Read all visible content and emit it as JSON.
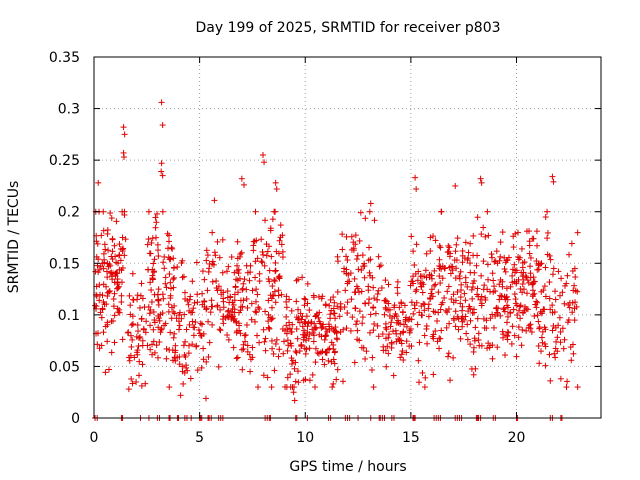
{
  "chart_data": {
    "type": "scatter",
    "title": "Day 199 of 2025, SRMTID for receiver p803",
    "xlabel": "GPS time / hours",
    "ylabel": "SRMTID / TECUs",
    "xlim": [
      0,
      24
    ],
    "ylim": [
      0,
      0.35
    ],
    "grid": true,
    "marker": "+",
    "color": "#e00000",
    "xticks": [
      0,
      5,
      10,
      15,
      20
    ],
    "xtick_labels": [
      "0",
      "5",
      "10",
      "15",
      "20"
    ],
    "yticks": [
      0,
      0.05,
      0.1,
      0.15,
      0.2,
      0.25,
      0.3,
      0.35
    ],
    "ytick_labels": [
      "0",
      "0.05",
      "0.1",
      "0.15",
      "0.2",
      "0.25",
      "0.3",
      "0.35"
    ],
    "clusters": [
      {
        "x0": 0.0,
        "x1": 1.5,
        "mean": 0.14,
        "spread": 0.035,
        "n": 130
      },
      {
        "x0": 1.5,
        "x1": 2.5,
        "mean": 0.08,
        "spread": 0.03,
        "n": 50
      },
      {
        "x0": 2.5,
        "x1": 3.8,
        "mean": 0.12,
        "spread": 0.04,
        "n": 110
      },
      {
        "x0": 3.8,
        "x1": 5.3,
        "mean": 0.09,
        "spread": 0.03,
        "n": 80
      },
      {
        "x0": 5.3,
        "x1": 6.3,
        "mean": 0.12,
        "spread": 0.03,
        "n": 50
      },
      {
        "x0": 6.3,
        "x1": 7.5,
        "mean": 0.1,
        "spread": 0.03,
        "n": 90
      },
      {
        "x0": 7.5,
        "x1": 9.0,
        "mean": 0.13,
        "spread": 0.04,
        "n": 100
      },
      {
        "x0": 9.0,
        "x1": 11.5,
        "mean": 0.08,
        "spread": 0.025,
        "n": 170
      },
      {
        "x0": 11.5,
        "x1": 13.8,
        "mean": 0.12,
        "spread": 0.035,
        "n": 120
      },
      {
        "x0": 13.8,
        "x1": 15.0,
        "mean": 0.09,
        "spread": 0.02,
        "n": 70
      },
      {
        "x0": 15.0,
        "x1": 16.5,
        "mean": 0.12,
        "spread": 0.035,
        "n": 100
      },
      {
        "x0": 16.5,
        "x1": 19.0,
        "mean": 0.12,
        "spread": 0.035,
        "n": 160
      },
      {
        "x0": 19.0,
        "x1": 21.0,
        "mean": 0.12,
        "spread": 0.03,
        "n": 150
      },
      {
        "x0": 21.0,
        "x1": 22.9,
        "mean": 0.11,
        "spread": 0.035,
        "n": 100
      }
    ],
    "outliers": [
      {
        "x": 3.2,
        "y": 0.306
      },
      {
        "x": 3.25,
        "y": 0.284
      },
      {
        "x": 1.4,
        "y": 0.282
      },
      {
        "x": 1.45,
        "y": 0.275
      },
      {
        "x": 1.4,
        "y": 0.257
      },
      {
        "x": 1.42,
        "y": 0.253
      },
      {
        "x": 8.0,
        "y": 0.255
      },
      {
        "x": 8.05,
        "y": 0.248
      },
      {
        "x": 3.2,
        "y": 0.247
      },
      {
        "x": 3.18,
        "y": 0.239
      },
      {
        "x": 3.25,
        "y": 0.235
      },
      {
        "x": 7.0,
        "y": 0.232
      },
      {
        "x": 7.1,
        "y": 0.226
      },
      {
        "x": 0.2,
        "y": 0.228
      },
      {
        "x": 15.2,
        "y": 0.233
      },
      {
        "x": 15.25,
        "y": 0.222
      },
      {
        "x": 18.3,
        "y": 0.232
      },
      {
        "x": 18.35,
        "y": 0.228
      },
      {
        "x": 21.7,
        "y": 0.234
      },
      {
        "x": 21.75,
        "y": 0.229
      },
      {
        "x": 8.6,
        "y": 0.228
      },
      {
        "x": 8.65,
        "y": 0.222
      },
      {
        "x": 17.1,
        "y": 0.225
      },
      {
        "x": 5.7,
        "y": 0.211
      },
      {
        "x": 13.1,
        "y": 0.208
      },
      {
        "x": 4.1,
        "y": 0.022
      },
      {
        "x": 5.3,
        "y": 0.019
      },
      {
        "x": 9.5,
        "y": 0.017
      },
      {
        "x": 9.45,
        "y": 0.025
      },
      {
        "x": 1.65,
        "y": 0.028
      },
      {
        "x": 22.1,
        "y": 0.038
      },
      {
        "x": 21.6,
        "y": 0.036
      }
    ],
    "zero_values_x": [
      0.05,
      0.15,
      1.3,
      1.35,
      2.2,
      2.6,
      3.0,
      3.1,
      3.55,
      3.6,
      3.95,
      4.0,
      4.3,
      4.4,
      4.6,
      5.0,
      5.05,
      5.1,
      5.4,
      5.45,
      5.55,
      5.9,
      6.0,
      6.1,
      8.1,
      8.2,
      8.3,
      8.35,
      9.55,
      9.6,
      10.1,
      11.1,
      11.2,
      11.9,
      12.0,
      12.1,
      12.5,
      13.1,
      13.5,
      13.55,
      13.65,
      13.75,
      14.1,
      14.2,
      15.1,
      15.15,
      15.2,
      16.1,
      16.2,
      16.3,
      16.4,
      17.1,
      17.2,
      17.3,
      17.4,
      18.1,
      18.15,
      18.2,
      18.3,
      18.9,
      19.0,
      20.0,
      20.05,
      21.6,
      21.7,
      22.1,
      22.15
    ]
  }
}
